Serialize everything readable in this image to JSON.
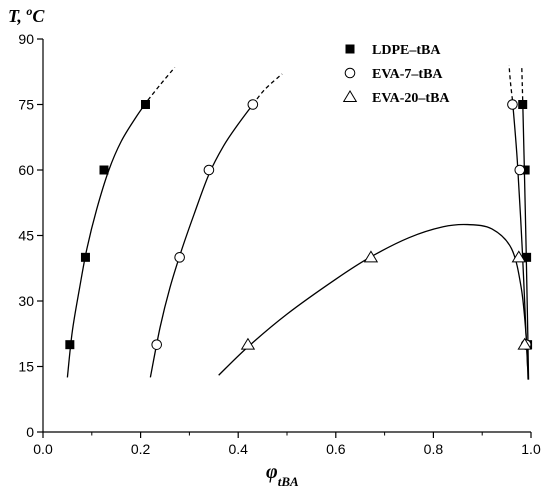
{
  "chart_data": {
    "type": "scatter",
    "ylabel": "T, °C",
    "xlabel": "φtBA",
    "xlim": [
      0.0,
      1.0
    ],
    "ylim": [
      0,
      90
    ],
    "xticks": [
      "0.0",
      "0.2",
      "0.4",
      "0.6",
      "0.8",
      "1.0"
    ],
    "yticks": [
      "0",
      "15",
      "30",
      "45",
      "60",
      "75",
      "90"
    ],
    "grid": false,
    "legend_position": "top-right",
    "series": [
      {
        "name": "LDPE–tBA",
        "marker": "filled-square",
        "points": [
          {
            "x": 0.055,
            "y": 20
          },
          {
            "x": 0.087,
            "y": 40
          },
          {
            "x": 0.125,
            "y": 60
          },
          {
            "x": 0.21,
            "y": 75
          },
          {
            "x": 0.983,
            "y": 75
          },
          {
            "x": 0.988,
            "y": 60
          },
          {
            "x": 0.991,
            "y": 40
          },
          {
            "x": 0.993,
            "y": 20
          }
        ]
      },
      {
        "name": "EVA-7–tBA",
        "marker": "open-circle",
        "points": [
          {
            "x": 0.233,
            "y": 20
          },
          {
            "x": 0.28,
            "y": 40
          },
          {
            "x": 0.34,
            "y": 60
          },
          {
            "x": 0.43,
            "y": 75
          },
          {
            "x": 0.962,
            "y": 75
          },
          {
            "x": 0.977,
            "y": 60
          },
          {
            "x": 0.99,
            "y": 20
          }
        ]
      },
      {
        "name": "EVA-20–tBA",
        "marker": "open-triangle",
        "points": [
          {
            "x": 0.42,
            "y": 20
          },
          {
            "x": 0.672,
            "y": 40
          },
          {
            "x": 0.975,
            "y": 40
          },
          {
            "x": 0.987,
            "y": 20
          }
        ]
      }
    ],
    "curves": [
      {
        "series": "LDPE–tBA",
        "style": "solid",
        "points": [
          [
            0.05,
            12.5
          ],
          [
            0.06,
            23
          ],
          [
            0.075,
            33
          ],
          [
            0.09,
            42
          ],
          [
            0.11,
            51
          ],
          [
            0.135,
            60
          ],
          [
            0.16,
            66.5
          ],
          [
            0.19,
            72
          ],
          [
            0.215,
            76
          ]
        ]
      },
      {
        "series": "LDPE–tBA",
        "style": "dashed",
        "points": [
          [
            0.215,
            76
          ],
          [
            0.24,
            79.5
          ],
          [
            0.27,
            83.5
          ]
        ]
      },
      {
        "series": "EVA-7–tBA",
        "style": "solid",
        "points": [
          [
            0.22,
            12.5
          ],
          [
            0.24,
            24
          ],
          [
            0.26,
            33
          ],
          [
            0.285,
            42
          ],
          [
            0.31,
            50
          ],
          [
            0.34,
            59
          ],
          [
            0.37,
            65.5
          ],
          [
            0.4,
            70.5
          ],
          [
            0.43,
            75
          ]
        ]
      },
      {
        "series": "EVA-7–tBA",
        "style": "dashed",
        "points": [
          [
            0.43,
            75
          ],
          [
            0.455,
            78.5
          ],
          [
            0.49,
            82
          ]
        ]
      },
      {
        "series": "EVA-20–tBA",
        "style": "solid",
        "points": [
          [
            0.36,
            13
          ],
          [
            0.42,
            19.5
          ],
          [
            0.5,
            27
          ],
          [
            0.6,
            35
          ],
          [
            0.67,
            40
          ],
          [
            0.75,
            44.5
          ],
          [
            0.82,
            47
          ],
          [
            0.87,
            47.5
          ],
          [
            0.92,
            46.5
          ],
          [
            0.96,
            42
          ],
          [
            0.98,
            33
          ],
          [
            0.99,
            22
          ],
          [
            0.994,
            12
          ]
        ]
      },
      {
        "series": "LDPE–tBA",
        "style": "solid",
        "points": [
          [
            0.983,
            76
          ],
          [
            0.986,
            62
          ],
          [
            0.99,
            42
          ],
          [
            0.993,
            25
          ],
          [
            0.995,
            12
          ]
        ]
      },
      {
        "series": "LDPE–tBA",
        "style": "dashed",
        "points": [
          [
            0.983,
            76
          ],
          [
            0.982,
            80
          ],
          [
            0.981,
            84
          ]
        ]
      },
      {
        "series": "EVA-7–tBA",
        "style": "solid",
        "points": [
          [
            0.962,
            76
          ],
          [
            0.972,
            62
          ],
          [
            0.982,
            42
          ],
          [
            0.99,
            22
          ],
          [
            0.993,
            15
          ]
        ]
      },
      {
        "series": "EVA-7–tBA",
        "style": "dashed",
        "points": [
          [
            0.962,
            76
          ],
          [
            0.958,
            80
          ],
          [
            0.955,
            84
          ]
        ]
      }
    ]
  }
}
